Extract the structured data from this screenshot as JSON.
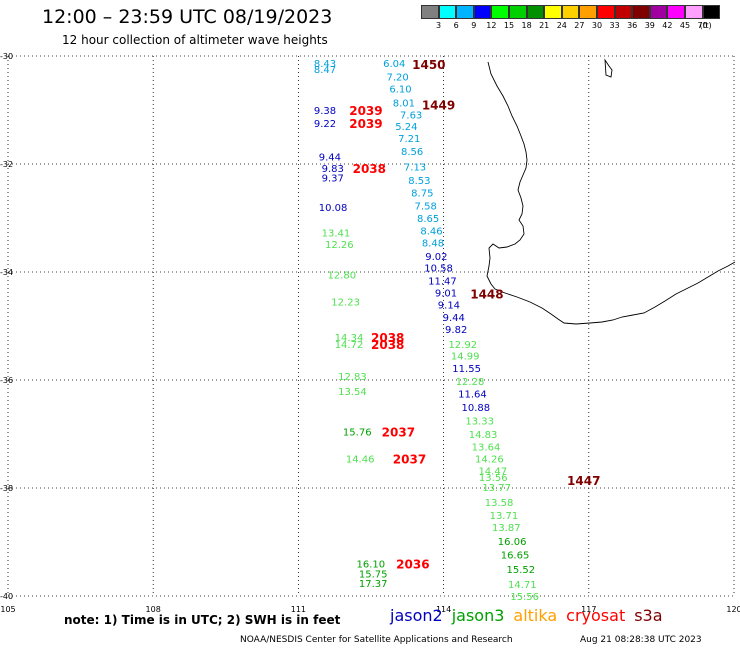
{
  "header": {
    "title": "12:00 – 23:59 UTC 08/19/2023",
    "subtitle": "12 hour collection of altimeter wave heights"
  },
  "legend": {
    "colors": [
      "#808080",
      "#00ffff",
      "#00b4ff",
      "#0000ff",
      "#00ff00",
      "#00d000",
      "#009000",
      "#ffff00",
      "#ffd000",
      "#ffa000",
      "#ff0000",
      "#c00000",
      "#800000",
      "#a000a0",
      "#ff00ff",
      "#ffa0ff",
      "#000000"
    ],
    "labels": [
      "3",
      "6",
      "9",
      "12",
      "15",
      "18",
      "21",
      "24",
      "27",
      "30",
      "33",
      "36",
      "39",
      "42",
      "45",
      "70",
      "(ft)"
    ]
  },
  "axes": {
    "lat_labels": [
      "-30",
      "-32",
      "-34",
      "-36",
      "-38",
      "-40"
    ],
    "lon_labels": [
      "105",
      "108",
      "111",
      "114",
      "117",
      "120"
    ]
  },
  "map_style": {
    "coastline_color": "#000000",
    "grid": "dotted"
  },
  "observations": [
    {
      "v": "8.43",
      "lon": 111.32,
      "lat": -30.13,
      "c": "#00a0dc"
    },
    {
      "v": "8.47",
      "lon": 111.32,
      "lat": -30.24,
      "c": "#00a0dc"
    },
    {
      "v": "6.04",
      "lon": 112.75,
      "lat": -30.13,
      "c": "#00a0dc"
    },
    {
      "v": "7.20",
      "lon": 112.82,
      "lat": -30.38,
      "c": "#00a0dc"
    },
    {
      "v": "6.10",
      "lon": 112.88,
      "lat": -30.6,
      "c": "#00a0dc"
    },
    {
      "v": "8.01",
      "lon": 112.95,
      "lat": -30.86,
      "c": "#00a0dc"
    },
    {
      "v": "7.63",
      "lon": 113.1,
      "lat": -31.08,
      "c": "#00a0dc"
    },
    {
      "v": "5.24",
      "lon": 113.0,
      "lat": -31.3,
      "c": "#00a0dc"
    },
    {
      "v": "7.21",
      "lon": 113.06,
      "lat": -31.52,
      "c": "#00a0dc"
    },
    {
      "v": "8.56",
      "lon": 113.12,
      "lat": -31.76,
      "c": "#00a0dc"
    },
    {
      "v": "7.13",
      "lon": 113.18,
      "lat": -32.05,
      "c": "#00a0dc"
    },
    {
      "v": "8.53",
      "lon": 113.27,
      "lat": -32.3,
      "c": "#00a0dc"
    },
    {
      "v": "8.75",
      "lon": 113.33,
      "lat": -32.53,
      "c": "#00a0dc"
    },
    {
      "v": "7.58",
      "lon": 113.4,
      "lat": -32.77,
      "c": "#00a0dc"
    },
    {
      "v": "8.65",
      "lon": 113.45,
      "lat": -33.0,
      "c": "#00a0dc"
    },
    {
      "v": "8.46",
      "lon": 113.52,
      "lat": -33.23,
      "c": "#00a0dc"
    },
    {
      "v": "8.48",
      "lon": 113.55,
      "lat": -33.45,
      "c": "#00a0dc"
    },
    {
      "v": "9.38",
      "lon": 111.32,
      "lat": -31.0,
      "c": "#0000c0"
    },
    {
      "v": "9.22",
      "lon": 111.32,
      "lat": -31.24,
      "c": "#0000c0"
    },
    {
      "v": "9.44",
      "lon": 111.42,
      "lat": -31.86,
      "c": "#0000c0"
    },
    {
      "v": "9.83",
      "lon": 111.48,
      "lat": -32.07,
      "c": "#0000c0"
    },
    {
      "v": "9.37",
      "lon": 111.48,
      "lat": -32.25,
      "c": "#0000c0"
    },
    {
      "v": "10.08",
      "lon": 111.42,
      "lat": -32.8,
      "c": "#0000c0"
    },
    {
      "v": "9.02",
      "lon": 113.62,
      "lat": -33.7,
      "c": "#0000c0"
    },
    {
      "v": "10.58",
      "lon": 113.6,
      "lat": -33.92,
      "c": "#0000c0"
    },
    {
      "v": "11.47",
      "lon": 113.68,
      "lat": -34.16,
      "c": "#0000c0"
    },
    {
      "v": "9.01",
      "lon": 113.82,
      "lat": -34.38,
      "c": "#0000c0"
    },
    {
      "v": "9.14",
      "lon": 113.88,
      "lat": -34.6,
      "c": "#0000c0"
    },
    {
      "v": "9.44",
      "lon": 113.98,
      "lat": -34.83,
      "c": "#0000c0"
    },
    {
      "v": "9.82",
      "lon": 114.03,
      "lat": -35.06,
      "c": "#0000c0"
    },
    {
      "v": "11.55",
      "lon": 114.18,
      "lat": -35.78,
      "c": "#0000c0"
    },
    {
      "v": "11.64",
      "lon": 114.3,
      "lat": -36.25,
      "c": "#0000c0"
    },
    {
      "v": "10.88",
      "lon": 114.37,
      "lat": -36.5,
      "c": "#0000c0"
    },
    {
      "v": "13.41",
      "lon": 111.48,
      "lat": -33.27,
      "c": "#50e050"
    },
    {
      "v": "12.26",
      "lon": 111.55,
      "lat": -33.48,
      "c": "#50e050"
    },
    {
      "v": "12.80",
      "lon": 111.6,
      "lat": -34.05,
      "c": "#50e050"
    },
    {
      "v": "12.23",
      "lon": 111.68,
      "lat": -34.55,
      "c": "#50e050"
    },
    {
      "v": "14.34",
      "lon": 111.75,
      "lat": -35.2,
      "c": "#50e050"
    },
    {
      "v": "14.72",
      "lon": 111.75,
      "lat": -35.33,
      "c": "#50e050"
    },
    {
      "v": "12.83",
      "lon": 111.82,
      "lat": -35.93,
      "c": "#50e050"
    },
    {
      "v": "13.54",
      "lon": 111.82,
      "lat": -36.2,
      "c": "#50e050"
    },
    {
      "v": "14.46",
      "lon": 111.98,
      "lat": -37.45,
      "c": "#50e050"
    },
    {
      "v": "12.92",
      "lon": 114.1,
      "lat": -35.33,
      "c": "#50e050"
    },
    {
      "v": "14.99",
      "lon": 114.15,
      "lat": -35.55,
      "c": "#50e050"
    },
    {
      "v": "12.28",
      "lon": 114.25,
      "lat": -36.02,
      "c": "#50e050"
    },
    {
      "v": "13.33",
      "lon": 114.45,
      "lat": -36.75,
      "c": "#50e050"
    },
    {
      "v": "14.83",
      "lon": 114.52,
      "lat": -37.0,
      "c": "#50e050"
    },
    {
      "v": "13.64",
      "lon": 114.58,
      "lat": -37.23,
      "c": "#50e050"
    },
    {
      "v": "14.26",
      "lon": 114.65,
      "lat": -37.45,
      "c": "#50e050"
    },
    {
      "v": "14.47",
      "lon": 114.72,
      "lat": -37.68,
      "c": "#50e050"
    },
    {
      "v": "13.56",
      "lon": 114.73,
      "lat": -37.8,
      "c": "#50e050"
    },
    {
      "v": "13.77",
      "lon": 114.8,
      "lat": -37.98,
      "c": "#50e050"
    },
    {
      "v": "13.58",
      "lon": 114.85,
      "lat": -38.26,
      "c": "#50e050"
    },
    {
      "v": "13.71",
      "lon": 114.95,
      "lat": -38.5,
      "c": "#50e050"
    },
    {
      "v": "13.87",
      "lon": 115.0,
      "lat": -38.72,
      "c": "#50e050"
    },
    {
      "v": "14.71",
      "lon": 115.33,
      "lat": -39.78,
      "c": "#50e050"
    },
    {
      "v": "15.56",
      "lon": 115.38,
      "lat": -40.0,
      "c": "#50e050"
    },
    {
      "v": "15.76",
      "lon": 111.92,
      "lat": -36.95,
      "c": "#00a000"
    },
    {
      "v": "16.06",
      "lon": 115.12,
      "lat": -38.98,
      "c": "#00a000"
    },
    {
      "v": "16.65",
      "lon": 115.18,
      "lat": -39.23,
      "c": "#00a000"
    },
    {
      "v": "15.52",
      "lon": 115.3,
      "lat": -39.5,
      "c": "#00a000"
    },
    {
      "v": "16.10",
      "lon": 112.2,
      "lat": -39.4,
      "c": "#00a000"
    },
    {
      "v": "15.75",
      "lon": 112.25,
      "lat": -39.58,
      "c": "#00a000"
    },
    {
      "v": "17.37",
      "lon": 112.25,
      "lat": -39.76,
      "c": "#00a000"
    }
  ],
  "passes": [
    {
      "t": "1450",
      "lon": 113.35,
      "lat": -30.15,
      "c": "#800000"
    },
    {
      "t": "1449",
      "lon": 113.55,
      "lat": -30.9,
      "c": "#800000"
    },
    {
      "t": "1448",
      "lon": 114.55,
      "lat": -34.4,
      "c": "#800000"
    },
    {
      "t": "1447",
      "lon": 116.55,
      "lat": -37.85,
      "c": "#800000"
    },
    {
      "t": "2039",
      "lon": 112.05,
      "lat": -31.0,
      "c": "#ff0000"
    },
    {
      "t": "2039",
      "lon": 112.05,
      "lat": -31.24,
      "c": "#ff0000"
    },
    {
      "t": "2038",
      "lon": 112.12,
      "lat": -32.07,
      "c": "#ff0000"
    },
    {
      "t": "2038",
      "lon": 112.5,
      "lat": -35.2,
      "c": "#ff0000"
    },
    {
      "t": "2038",
      "lon": 112.5,
      "lat": -35.33,
      "c": "#ff0000"
    },
    {
      "t": "2037",
      "lon": 112.72,
      "lat": -36.95,
      "c": "#ff0000"
    },
    {
      "t": "2037",
      "lon": 112.95,
      "lat": -37.45,
      "c": "#ff0000"
    },
    {
      "t": "2036",
      "lon": 113.02,
      "lat": -39.4,
      "c": "#ff0000"
    }
  ],
  "note": "note:  1) Time is in UTC;  2) SWH is in feet",
  "satellites": [
    {
      "name": "jason2",
      "color": "#0000c0"
    },
    {
      "name": "jason3",
      "color": "#00a000"
    },
    {
      "name": "altika",
      "color": "#ffa000"
    },
    {
      "name": "cryosat",
      "color": "#ff0000"
    },
    {
      "name": "s3a",
      "color": "#800000"
    }
  ],
  "footer": {
    "center": "NOAA/NESDIS Center for Satellite Applications and Research",
    "timestamp": "Aug 21 08:28:38 UTC 2023"
  }
}
